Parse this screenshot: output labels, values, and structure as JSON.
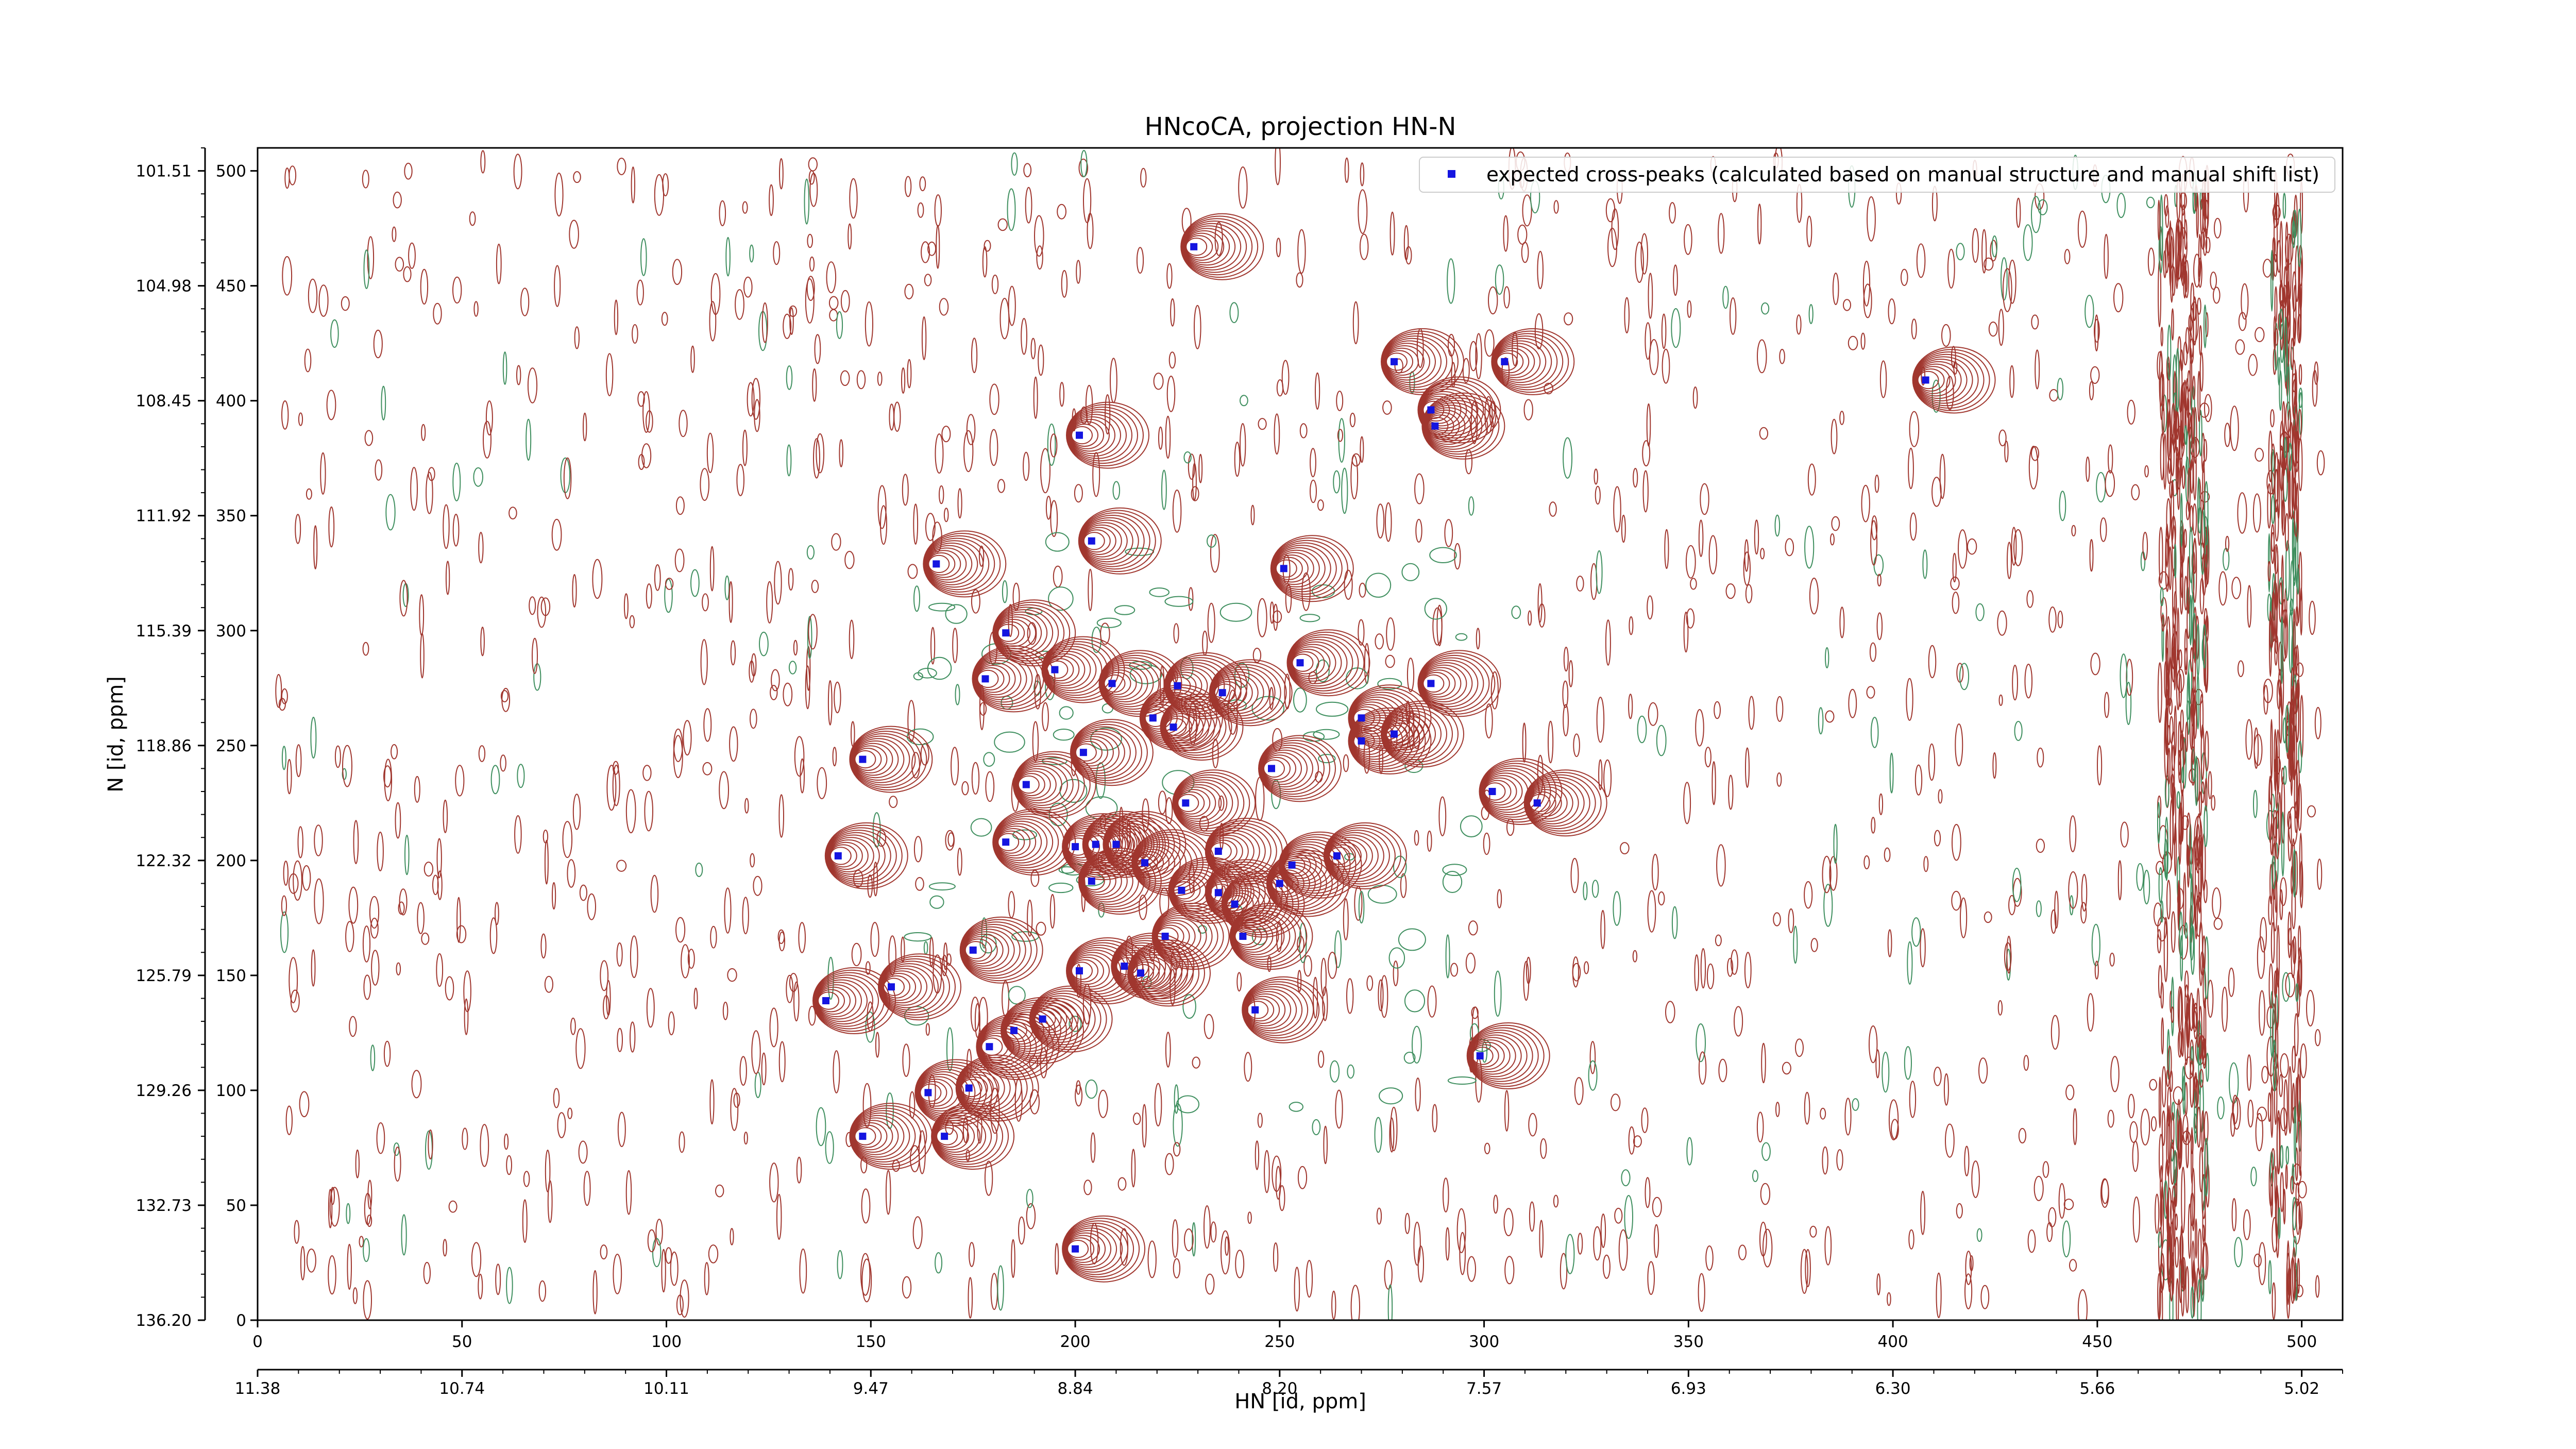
{
  "chart_data": {
    "type": "scatter",
    "title": "HNcoCA, projection HN-N",
    "xlabel": "HN [id, ppm]",
    "ylabel": "N [id, ppm]",
    "xlim": [
      0,
      510
    ],
    "ylim": [
      0,
      510
    ],
    "x_ticks_index": [
      "0",
      "50",
      "100",
      "150",
      "200",
      "250",
      "300",
      "350",
      "400",
      "450",
      "500"
    ],
    "x_ticks_ppm": [
      "11.38",
      "10.74",
      "10.11",
      "9.47",
      "8.84",
      "8.20",
      "7.57",
      "6.93",
      "6.30",
      "5.66",
      "5.02"
    ],
    "y_ticks_index": [
      "0",
      "50",
      "100",
      "150",
      "200",
      "250",
      "300",
      "350",
      "400",
      "450",
      "500"
    ],
    "y_ticks_ppm": [
      "136.20",
      "132.73",
      "129.26",
      "125.79",
      "122.32",
      "118.86",
      "115.39",
      "111.92",
      "108.45",
      "104.98",
      "101.51"
    ],
    "legend": {
      "label": "expected cross-peaks (calculated based on manual structure and manual shift list)",
      "position": "top-right"
    },
    "colors": {
      "positive_contour": "#a0362e",
      "negative_contour": "#3f8f5f",
      "marker": "#1515e0"
    },
    "series": [
      {
        "name": "expected cross-peaks (calculated based on manual structure and manual shift list)",
        "points": [
          [
            229,
            467
          ],
          [
            278,
            417
          ],
          [
            305,
            417
          ],
          [
            408,
            409
          ],
          [
            287,
            396
          ],
          [
            288,
            389
          ],
          [
            201,
            385
          ],
          [
            204,
            339
          ],
          [
            166,
            329
          ],
          [
            251,
            327
          ],
          [
            183,
            299
          ],
          [
            178,
            279
          ],
          [
            195,
            283
          ],
          [
            255,
            286
          ],
          [
            209,
            277
          ],
          [
            225,
            276
          ],
          [
            236,
            273
          ],
          [
            287,
            277
          ],
          [
            219,
            262
          ],
          [
            224,
            258
          ],
          [
            270,
            262
          ],
          [
            270,
            252
          ],
          [
            278,
            255
          ],
          [
            202,
            247
          ],
          [
            148,
            244
          ],
          [
            248,
            240
          ],
          [
            188,
            233
          ],
          [
            302,
            230
          ],
          [
            313,
            225
          ],
          [
            227,
            225
          ],
          [
            183,
            208
          ],
          [
            142,
            202
          ],
          [
            200,
            206
          ],
          [
            205,
            207
          ],
          [
            210,
            207
          ],
          [
            235,
            204
          ],
          [
            264,
            202
          ],
          [
            217,
            199
          ],
          [
            253,
            198
          ],
          [
            204,
            191
          ],
          [
            250,
            190
          ],
          [
            226,
            187
          ],
          [
            235,
            186
          ],
          [
            239,
            181
          ],
          [
            222,
            167
          ],
          [
            241,
            167
          ],
          [
            175,
            161
          ],
          [
            201,
            152
          ],
          [
            212,
            154
          ],
          [
            216,
            151
          ],
          [
            155,
            145
          ],
          [
            139,
            139
          ],
          [
            244,
            135
          ],
          [
            192,
            131
          ],
          [
            185,
            126
          ],
          [
            179,
            119
          ],
          [
            299,
            115
          ],
          [
            174,
            101
          ],
          [
            164,
            99
          ],
          [
            148,
            80
          ],
          [
            168,
            80
          ],
          [
            200,
            31
          ]
        ]
      }
    ]
  }
}
